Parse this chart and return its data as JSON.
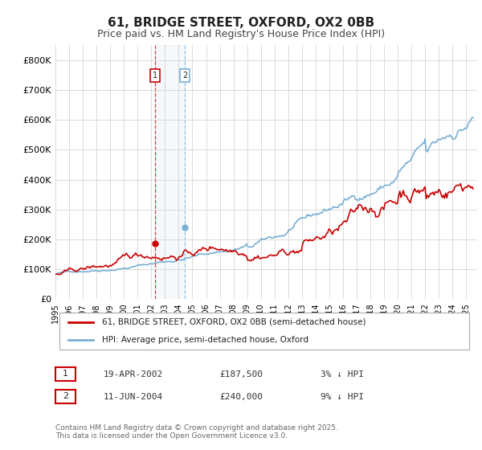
{
  "title": "61, BRIDGE STREET, OXFORD, OX2 0BB",
  "subtitle": "Price paid vs. HM Land Registry's House Price Index (HPI)",
  "ylabel_ticks": [
    "£0",
    "£100K",
    "£200K",
    "£300K",
    "£400K",
    "£500K",
    "£600K",
    "£700K",
    "£800K"
  ],
  "ytick_values": [
    0,
    100000,
    200000,
    300000,
    400000,
    500000,
    600000,
    700000,
    800000
  ],
  "ylim": [
    0,
    850000
  ],
  "xlim_start": 1995.0,
  "xlim_end": 2025.8,
  "transaction1": {
    "label": "1",
    "date": "19-APR-2002",
    "price": 187500,
    "year": 2002.29,
    "pct": "3% ↓ HPI"
  },
  "transaction2": {
    "label": "2",
    "date": "11-JUN-2004",
    "price": 240000,
    "year": 2004.45,
    "pct": "9% ↓ HPI"
  },
  "legend_line1": "61, BRIDGE STREET, OXFORD, OX2 0BB (semi-detached house)",
  "legend_line2": "HPI: Average price, semi-detached house, Oxford",
  "footer": "Contains HM Land Registry data © Crown copyright and database right 2025.\nThis data is licensed under the Open Government Licence v3.0.",
  "red_color": "#cc0000",
  "blue_color": "#7ab0d4",
  "background_color": "#ffffff",
  "grid_color": "#cccccc"
}
